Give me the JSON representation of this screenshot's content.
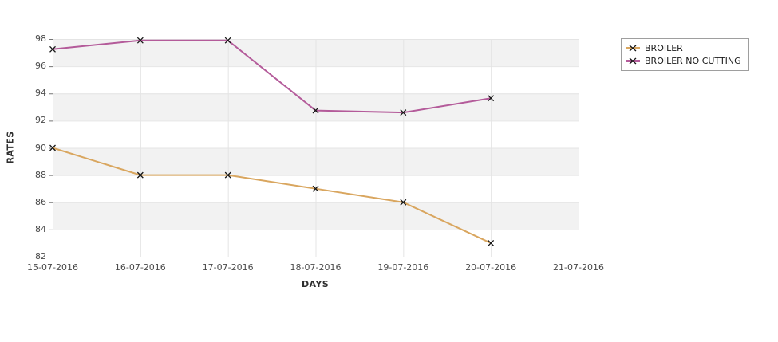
{
  "chart_data": {
    "type": "line",
    "title": "",
    "xlabel": "DAYS",
    "ylabel": "RATES",
    "categories": [
      "15-07-2016",
      "16-07-2016",
      "17-07-2016",
      "18-07-2016",
      "19-07-2016",
      "20-07-2016",
      "21-07-2016"
    ],
    "y_ticks": [
      98,
      96,
      94,
      92,
      90,
      88,
      86,
      84,
      82
    ],
    "ylim": [
      82,
      98
    ],
    "grid": true,
    "legend_position": "top-right",
    "marker": "x",
    "marker_color": "#161616",
    "plot_band_colors": [
      "#f2f2f2",
      "#ffffff"
    ],
    "gridline_color": "#e4e4e4",
    "axis_line_color": "#757575",
    "series": [
      {
        "name": "BROILER",
        "color": "#d9a65f",
        "x": [
          "15-07-2016",
          "16-07-2016",
          "17-07-2016",
          "18-07-2016",
          "19-07-2016",
          "20-07-2016"
        ],
        "values": [
          90,
          88,
          88,
          87,
          86,
          83
        ]
      },
      {
        "name": "BROILER NO CUTTING",
        "color": "#b45b9a",
        "x": [
          "15-07-2016",
          "16-07-2016",
          "17-07-2016",
          "18-07-2016",
          "19-07-2016",
          "20-07-2016"
        ],
        "values": [
          97.25,
          97.9,
          97.9,
          92.75,
          92.6,
          93.65
        ]
      }
    ]
  }
}
